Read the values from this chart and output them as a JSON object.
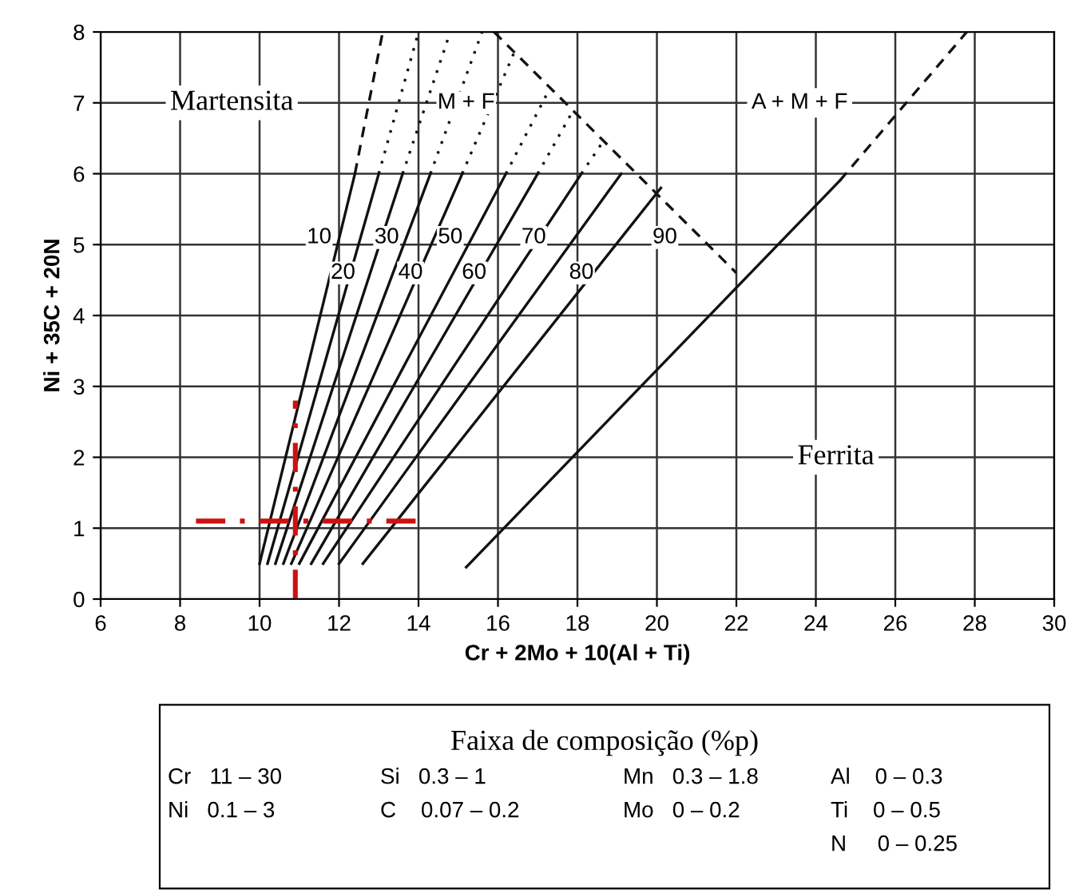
{
  "chart_data": {
    "type": "line",
    "xlabel": "Cr + 2Mo + 10(Al + Ti)",
    "ylabel": "Ni + 35C + 20N",
    "xlim": [
      6,
      30
    ],
    "xticks": [
      6,
      8,
      10,
      12,
      14,
      16,
      18,
      20,
      22,
      24,
      26,
      28,
      30
    ],
    "ylim": [
      0,
      8
    ],
    "yticks": [
      0,
      1,
      2,
      3,
      4,
      5,
      6,
      7,
      8
    ],
    "grid": true,
    "marker": "none",
    "line_style": "solid",
    "series": [
      {
        "color": "#111111",
        "x": [
          10.0,
          12.4
        ],
        "values": [
          0.5,
          6.0
        ]
      },
      {
        "color": "#111111",
        "x": [
          12.4,
          13.1
        ],
        "values": [
          6.0,
          8.0
        ],
        "line_style": "dashed"
      },
      {
        "color": "#111111",
        "x": [
          15.2,
          24.6
        ],
        "values": [
          0.45,
          5.9
        ]
      },
      {
        "color": "#111111",
        "x": [
          24.6,
          27.8
        ],
        "values": [
          5.9,
          8.0
        ],
        "line_style": "dashed"
      },
      {
        "color": "#111111",
        "x": [
          10.2,
          13.0
        ],
        "values": [
          0.5,
          6.0
        ]
      },
      {
        "color": "#111111",
        "x": [
          10.4,
          13.6
        ],
        "values": [
          0.5,
          6.0
        ]
      },
      {
        "color": "#111111",
        "x": [
          10.6,
          14.3
        ],
        "values": [
          0.5,
          6.0
        ]
      },
      {
        "color": "#111111",
        "x": [
          10.8,
          15.1
        ],
        "values": [
          0.5,
          6.0
        ]
      },
      {
        "color": "#111111",
        "x": [
          11.0,
          16.2
        ],
        "values": [
          0.5,
          6.0
        ]
      },
      {
        "color": "#111111",
        "x": [
          11.3,
          17.0
        ],
        "values": [
          0.5,
          6.0
        ]
      },
      {
        "color": "#111111",
        "x": [
          11.6,
          18.1
        ],
        "values": [
          0.5,
          6.0
        ]
      },
      {
        "color": "#111111",
        "x": [
          12.0,
          19.1
        ],
        "values": [
          0.5,
          6.0
        ]
      },
      {
        "color": "#111111",
        "x": [
          12.6,
          20.1
        ],
        "values": [
          0.5,
          5.8
        ]
      },
      {
        "color": "#111111",
        "x": [
          13.0,
          14.0
        ],
        "values": [
          6.0,
          8.0
        ],
        "line_style": "dotted"
      },
      {
        "color": "#111111",
        "x": [
          13.6,
          14.8
        ],
        "values": [
          6.0,
          8.0
        ],
        "line_style": "dotted"
      },
      {
        "color": "#111111",
        "x": [
          14.3,
          15.6
        ],
        "values": [
          6.0,
          8.0
        ],
        "line_style": "dotted"
      },
      {
        "color": "#111111",
        "x": [
          15.1,
          16.4
        ],
        "values": [
          6.0,
          7.7
        ],
        "line_style": "dotted"
      },
      {
        "color": "#111111",
        "x": [
          16.2,
          17.3
        ],
        "values": [
          6.0,
          7.2
        ],
        "line_style": "dotted"
      },
      {
        "color": "#111111",
        "x": [
          17.0,
          17.9
        ],
        "values": [
          6.0,
          6.9
        ],
        "line_style": "dotted"
      },
      {
        "color": "#111111",
        "x": [
          18.1,
          18.7
        ],
        "values": [
          6.0,
          6.5
        ],
        "line_style": "dotted"
      },
      {
        "color": "#111111",
        "x": [
          15.9,
          22.0
        ],
        "values": [
          8.0,
          4.6
        ],
        "line_style": "dashed"
      },
      {
        "color": "#cc1111",
        "x": [
          8.4,
          14.0
        ],
        "values": [
          1.1,
          1.1
        ],
        "line_style": "dashdot"
      },
      {
        "color": "#cc1111",
        "x": [
          10.9,
          10.9
        ],
        "values": [
          0,
          2.8
        ],
        "line_style": "dashdot"
      }
    ],
    "annotations": [
      {
        "text": "10",
        "x": 11.5,
        "y": 5.1
      },
      {
        "text": "20",
        "x": 12.1,
        "y": 4.6
      },
      {
        "text": "30",
        "x": 13.2,
        "y": 5.1
      },
      {
        "text": "40",
        "x": 13.8,
        "y": 4.6
      },
      {
        "text": "50",
        "x": 14.8,
        "y": 5.1
      },
      {
        "text": "60",
        "x": 15.4,
        "y": 4.6
      },
      {
        "text": "70",
        "x": 16.9,
        "y": 5.1
      },
      {
        "text": "80",
        "x": 18.1,
        "y": 4.6
      },
      {
        "text": "90",
        "x": 20.2,
        "y": 5.1
      },
      {
        "text": "M + F",
        "x": 15.2,
        "y": 7.0
      },
      "Martensita",
      "A + M + F",
      "Ferrita",
      "Faixa de composição (%p)",
      "Cr   11 – 30",
      "Ni   0.1 – 3",
      "Si   0.3 – 1",
      "C    0.07 – 0.2",
      "Mn   0.3 – 1.8",
      "Mo   0 – 0.2",
      "Al    0 – 0.3",
      "Ti    0 – 0.5",
      "N     0 – 0.25"
    ]
  }
}
